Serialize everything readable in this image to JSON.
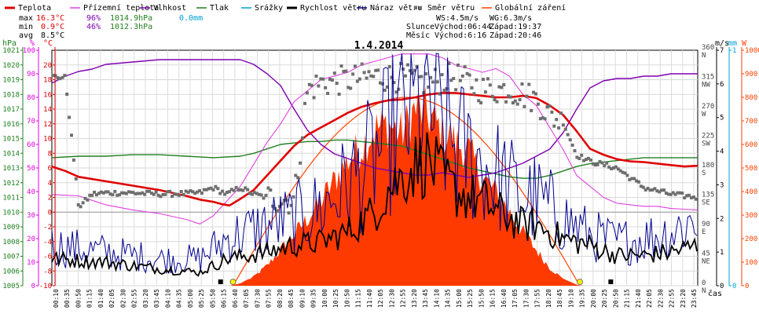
{
  "legend": [
    {
      "label": "Teplota",
      "color": "#e00000",
      "style": "thick"
    },
    {
      "label": "Přízemní teplota",
      "color": "#e040e0",
      "style": "thin"
    },
    {
      "label": "Vlhkost",
      "color": "#8000b0",
      "style": "thin"
    },
    {
      "label": "Tlak",
      "color": "#208020",
      "style": "thin"
    },
    {
      "label": "Srážky",
      "color": "#00a0d0",
      "style": "thin"
    },
    {
      "label": "Rychlost větru",
      "color": "#000000",
      "style": "thick"
    },
    {
      "label": "Náraz větru",
      "color": "#000080",
      "style": "thin"
    },
    {
      "label": "Směr větru",
      "color": "#707070",
      "style": "dots"
    },
    {
      "label": "Globální záření",
      "color": "#ff4000",
      "style": "thin"
    }
  ],
  "stats": {
    "rows": [
      {
        "label": "max",
        "temp": "16.3°C",
        "hum": "96%",
        "press": "1014.9hPa",
        "rain": "0.0mm"
      },
      {
        "label": "min",
        "temp": "0.9°C",
        "hum": "46%",
        "press": "1012.3hPa",
        "rain": ""
      },
      {
        "label": "avg",
        "temp": "8.5°C",
        "hum": "",
        "press": "",
        "rain": ""
      }
    ],
    "colors": {
      "temp": "#e00000",
      "hum": "#8000b0",
      "press": "#208020",
      "rain": "#00a0d0"
    }
  },
  "wind": {
    "ws": "WS:4.5m/s",
    "wg": "WG:6.3m/s"
  },
  "sun": {
    "label": "Slunce",
    "rise": "Východ:06:44",
    "set": "Západ:19:37"
  },
  "moon": {
    "label": "Měsíc",
    "rise": "Východ:6:16",
    "set": "Západ:20:46"
  },
  "chart_data": {
    "type": "line",
    "title": "1.4.2014",
    "xlabel": "čas",
    "x_ticks": [
      "00:10",
      "00:35",
      "00:50",
      "01:15",
      "01:40",
      "02:05",
      "02:30",
      "02:55",
      "03:20",
      "03:45",
      "04:10",
      "04:35",
      "05:00",
      "05:25",
      "05:50",
      "06:15",
      "06:40",
      "07:05",
      "07:30",
      "07:55",
      "08:20",
      "08:45",
      "09:10",
      "09:35",
      "10:00",
      "10:25",
      "10:50",
      "11:15",
      "11:40",
      "12:05",
      "12:30",
      "12:55",
      "13:20",
      "13:45",
      "14:10",
      "14:35",
      "15:00",
      "15:25",
      "15:50",
      "16:15",
      "16:40",
      "17:05",
      "17:30",
      "17:55",
      "18:20",
      "18:45",
      "19:10",
      "19:35",
      "20:00",
      "20:25",
      "20:50",
      "21:15",
      "21:40",
      "22:05",
      "22:30",
      "22:55",
      "23:20",
      "23:45"
    ],
    "axes": {
      "pressure": {
        "unit": "hPa",
        "min": 1005,
        "max": 1021,
        "ticks": [
          1005,
          1006,
          1007,
          1008,
          1009,
          1010,
          1011,
          1012,
          1013,
          1014,
          1015,
          1016,
          1017,
          1018,
          1019,
          1020,
          1021
        ],
        "color": "#208020"
      },
      "humidity": {
        "unit": "%",
        "min": 0,
        "max": 100,
        "ticks": [
          0,
          10,
          20,
          30,
          40,
          50,
          60,
          70,
          80,
          90,
          100
        ],
        "color": "#e000e0"
      },
      "temperature": {
        "unit": "°C",
        "min": -10,
        "max": 22,
        "ticks": [
          -10,
          -8,
          -6,
          -4,
          -2,
          0,
          2,
          4,
          6,
          8,
          10,
          12,
          14,
          16,
          18,
          20
        ],
        "color": "#e00000"
      },
      "wind_direction": {
        "min": 0,
        "max": 360,
        "ticks": [
          {
            "v": 0,
            "lab": "N"
          },
          {
            "v": 45,
            "lab": "NE"
          },
          {
            "v": 90,
            "lab": "E"
          },
          {
            "v": 135,
            "lab": "SE"
          },
          {
            "v": 180,
            "lab": "S"
          },
          {
            "v": 225,
            "lab": "SW"
          },
          {
            "v": 270,
            "lab": "W"
          },
          {
            "v": 315,
            "lab": "NW"
          },
          {
            "v": 360,
            "lab": "N"
          }
        ]
      },
      "wind_speed": {
        "unit": "m/s",
        "min": 0,
        "max": 7,
        "ticks": [
          0,
          1,
          2,
          3,
          4,
          5,
          6,
          7
        ]
      },
      "rain": {
        "unit": "mm",
        "min": 0,
        "max": 1,
        "ticks": [
          0,
          1
        ],
        "color": "#00a0d0"
      },
      "radiation": {
        "unit": "W",
        "min": 0,
        "max": 1000,
        "ticks": [
          0,
          100,
          200,
          300,
          400,
          500,
          600,
          700,
          800,
          900,
          1000
        ],
        "color": "#ff4000"
      }
    },
    "series": [
      {
        "name": "Teplota",
        "axis": "temperature",
        "x_hours": [
          0,
          0.5,
          1,
          2,
          3,
          4,
          5,
          5.5,
          6,
          6.3,
          6.6,
          7,
          7.5,
          8,
          8.5,
          9,
          9.5,
          10,
          10.5,
          11,
          11.5,
          12,
          12.5,
          13,
          13.5,
          14,
          14.5,
          15,
          15.5,
          16,
          16.5,
          17,
          17.5,
          18,
          18.5,
          19,
          19.5,
          20,
          20.5,
          21,
          21.5,
          22,
          22.5,
          23,
          23.5,
          24
        ],
        "values": [
          6.2,
          5.6,
          4.8,
          4.2,
          3.6,
          3.0,
          2.2,
          1.7,
          1.4,
          1.1,
          0.9,
          1.8,
          3.0,
          5.0,
          7.0,
          9.0,
          10.5,
          11.5,
          12.5,
          13.5,
          14.3,
          14.8,
          15.2,
          15.3,
          15.6,
          16.0,
          16.2,
          16.2,
          16.0,
          15.8,
          15.6,
          15.6,
          15.8,
          15.5,
          14.5,
          13.2,
          11.0,
          8.6,
          7.8,
          7.2,
          6.9,
          6.8,
          6.6,
          6.4,
          6.2,
          6.3
        ]
      },
      {
        "name": "Přízemní teplota",
        "axis": "temperature",
        "x_hours": [
          0,
          1,
          2,
          3,
          4,
          5,
          5.5,
          6,
          6.5,
          7,
          7.5,
          8,
          8.5,
          9,
          9.5,
          10,
          10.5,
          11,
          11.5,
          12,
          12.5,
          13,
          13.5,
          14,
          14.5,
          15,
          15.5,
          16,
          16.5,
          17,
          17.5,
          18,
          18.5,
          19,
          19.5,
          20,
          20.5,
          21,
          21.5,
          22,
          22.5,
          23,
          23.5,
          24
        ],
        "values": [
          2.4,
          2.2,
          1.0,
          0.3,
          -0.2,
          -1.0,
          -1.6,
          -0.5,
          1.5,
          3.5,
          6.5,
          9.5,
          12.0,
          15.0,
          16.5,
          18.0,
          18.5,
          19.0,
          20.0,
          20.5,
          21.0,
          21.5,
          21.5,
          21.5,
          21.0,
          20.0,
          19.5,
          19.0,
          19.5,
          18.5,
          16.0,
          14.5,
          11.5,
          8.5,
          5.0,
          3.5,
          2.0,
          1.2,
          1.0,
          0.8,
          0.8,
          0.5,
          0.4,
          0.3
        ]
      },
      {
        "name": "Vlhkost",
        "axis": "humidity",
        "x_hours": [
          0,
          0.5,
          1,
          1.5,
          2,
          3,
          4,
          5,
          6,
          7,
          7.5,
          8,
          8.5,
          9,
          9.5,
          10,
          10.5,
          11,
          11.5,
          12,
          12.5,
          13,
          13.5,
          14,
          14.5,
          15,
          15.5,
          16,
          16.5,
          17,
          17.5,
          18,
          18.5,
          19,
          19.5,
          20,
          20.5,
          21,
          21.5,
          22,
          22.5,
          23,
          23.5,
          24
        ],
        "values": [
          86,
          89,
          91,
          92,
          94,
          95,
          96,
          96,
          96,
          96,
          94,
          90,
          85,
          75,
          66,
          60,
          56,
          54,
          52,
          50,
          49,
          48,
          47,
          47,
          48,
          47,
          46,
          47,
          48,
          50,
          52,
          55,
          58,
          65,
          75,
          84,
          87,
          88,
          88,
          89,
          89,
          90,
          90,
          90
        ]
      },
      {
        "name": "Tlak",
        "axis": "pressure",
        "x_hours": [
          0,
          1,
          2,
          3,
          4,
          5,
          6,
          7,
          7.5,
          8,
          8.5,
          9,
          9.5,
          10,
          10.5,
          11,
          11.5,
          12,
          12.5,
          13,
          13.5,
          14,
          14.5,
          15,
          15.5,
          16,
          16.5,
          17,
          17.5,
          18,
          18.5,
          19,
          19.5,
          20,
          20.5,
          21,
          21.5,
          22,
          22.5,
          23,
          23.5,
          24
        ],
        "values": [
          1013.7,
          1013.8,
          1013.8,
          1013.9,
          1013.9,
          1013.8,
          1013.7,
          1013.8,
          1014.0,
          1014.3,
          1014.6,
          1014.7,
          1014.8,
          1014.8,
          1014.9,
          1014.9,
          1014.8,
          1014.7,
          1014.6,
          1014.5,
          1014.2,
          1013.9,
          1013.6,
          1013.3,
          1013.0,
          1012.8,
          1012.6,
          1012.4,
          1012.3,
          1012.3,
          1012.5,
          1012.8,
          1013.1,
          1013.3,
          1013.4,
          1013.5,
          1013.6,
          1013.7,
          1013.7,
          1013.7,
          1013.7,
          1013.7
        ]
      },
      {
        "name": "Srážky",
        "axis": "rain",
        "x_hours": [
          0,
          24
        ],
        "values": [
          0,
          0
        ]
      },
      {
        "name": "Rychlost větru",
        "axis": "wind_speed",
        "profile": [
          [
            0,
            0.8
          ],
          [
            2,
            0.7
          ],
          [
            4,
            0.5
          ],
          [
            5.5,
            0.4
          ],
          [
            6.5,
            0.8
          ],
          [
            8,
            1.0
          ],
          [
            9,
            1.2
          ],
          [
            10,
            1.3
          ],
          [
            11,
            1.6
          ],
          [
            12,
            2.2
          ],
          [
            12.5,
            2.9
          ],
          [
            13,
            3.2
          ],
          [
            13.5,
            3.6
          ],
          [
            14,
            3.7
          ],
          [
            14.5,
            3.2
          ],
          [
            15,
            2.8
          ],
          [
            16,
            2.5
          ],
          [
            17,
            2.0
          ],
          [
            17.5,
            1.8
          ],
          [
            18,
            1.8
          ],
          [
            19,
            1.4
          ],
          [
            20,
            1.2
          ],
          [
            21,
            0.9
          ],
          [
            22,
            0.9
          ],
          [
            23,
            1.0
          ],
          [
            24,
            1.2
          ]
        ]
      },
      {
        "name": "Náraz větru",
        "axis": "wind_speed",
        "profile": [
          [
            0,
            1.2
          ],
          [
            2,
            1.0
          ],
          [
            4,
            0.8
          ],
          [
            5.5,
            0.8
          ],
          [
            6.5,
            1.4
          ],
          [
            8,
            1.8
          ],
          [
            9,
            2.0
          ],
          [
            10,
            2.3
          ],
          [
            11,
            3.0
          ],
          [
            12,
            3.8
          ],
          [
            12.5,
            4.4
          ],
          [
            13,
            4.9
          ],
          [
            13.5,
            5.2
          ],
          [
            14,
            5.4
          ],
          [
            14.5,
            4.6
          ],
          [
            15,
            4.2
          ],
          [
            16,
            3.6
          ],
          [
            17,
            3.0
          ],
          [
            17.5,
            2.6
          ],
          [
            18,
            2.6
          ],
          [
            19,
            2.0
          ],
          [
            20,
            1.5
          ],
          [
            21,
            1.3
          ],
          [
            22,
            1.4
          ],
          [
            23,
            1.6
          ],
          [
            24,
            2.0
          ]
        ]
      },
      {
        "name": "Směr větru",
        "axis": "wind_direction",
        "profile": [
          [
            0,
            320
          ],
          [
            0.5,
            318
          ],
          [
            1,
            120
          ],
          [
            1.5,
            140
          ],
          [
            2,
            142
          ],
          [
            3,
            142
          ],
          [
            4,
            140
          ],
          [
            5,
            141
          ],
          [
            5.5,
            142
          ],
          [
            6,
            150
          ],
          [
            6.5,
            140
          ],
          [
            7,
            150
          ],
          [
            7.5,
            140
          ],
          [
            8,
            135
          ],
          [
            9,
            130
          ],
          [
            9.5,
            300
          ],
          [
            10,
            310
          ],
          [
            11,
            315
          ],
          [
            12,
            320
          ],
          [
            13,
            318
          ],
          [
            14,
            310
          ],
          [
            15,
            320
          ],
          [
            16,
            300
          ],
          [
            17,
            300
          ],
          [
            18,
            285
          ],
          [
            18.5,
            260
          ],
          [
            19,
            250
          ],
          [
            19.5,
            200
          ],
          [
            20,
            190
          ],
          [
            21,
            180
          ],
          [
            22,
            150
          ],
          [
            23,
            140
          ],
          [
            24,
            135
          ]
        ]
      },
      {
        "name": "Globální záření",
        "axis": "radiation",
        "profile": [
          [
            0,
            0
          ],
          [
            6.6,
            0
          ],
          [
            7,
            10
          ],
          [
            7.5,
            40
          ],
          [
            8,
            90
          ],
          [
            8.5,
            160
          ],
          [
            9,
            230
          ],
          [
            9.5,
            300
          ],
          [
            10,
            380
          ],
          [
            10.5,
            470
          ],
          [
            11,
            560
          ],
          [
            11.5,
            620
          ],
          [
            12,
            700
          ],
          [
            12.5,
            720
          ],
          [
            13,
            680
          ],
          [
            13.5,
            790
          ],
          [
            14,
            760
          ],
          [
            14.5,
            690
          ],
          [
            15,
            640
          ],
          [
            15.5,
            600
          ],
          [
            16,
            480
          ],
          [
            16.5,
            420
          ],
          [
            17,
            330
          ],
          [
            17.5,
            240
          ],
          [
            18,
            160
          ],
          [
            18.5,
            80
          ],
          [
            19,
            30
          ],
          [
            19.5,
            5
          ],
          [
            19.7,
            0
          ],
          [
            24,
            0
          ]
        ]
      }
    ],
    "theoretical_radiation": {
      "name": "Globální záření (teoretické)",
      "axis": "radiation",
      "rise_h": 6.73,
      "set_h": 19.62,
      "peak": 800
    },
    "zero_line": {
      "axis": "temperature",
      "value": 0
    },
    "markers": [
      {
        "type": "sun-rise",
        "h": 6.73
      },
      {
        "type": "sun-set",
        "h": 19.62
      },
      {
        "type": "moon-rise",
        "h": 6.27
      },
      {
        "type": "moon-set",
        "h": 20.77
      }
    ],
    "grid": true
  }
}
